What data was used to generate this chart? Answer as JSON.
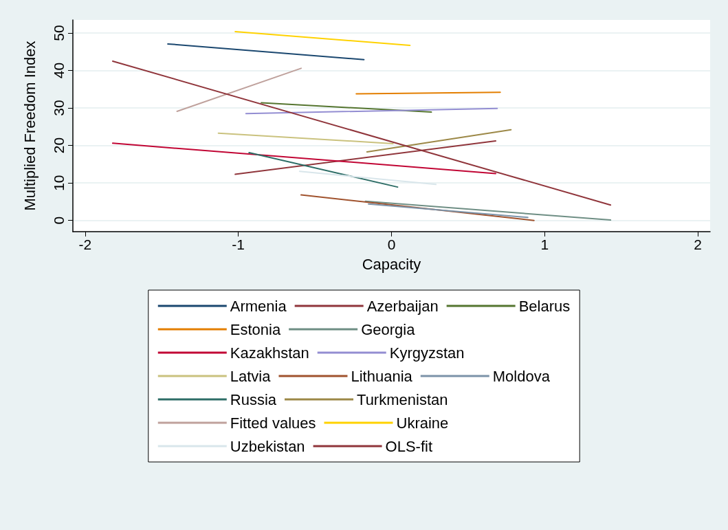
{
  "chart_data": {
    "type": "line",
    "xlabel": "Capacity",
    "ylabel": "Multiplied Freedom Index",
    "xlim": [
      -2.08,
      2.08
    ],
    "xticks": [
      -2,
      -1,
      0,
      1,
      2
    ],
    "ylim": [
      -3,
      53.5
    ],
    "yticks": [
      0,
      10,
      20,
      30,
      40,
      50
    ],
    "grid": "y",
    "legend": "bottom",
    "marker": "none",
    "line_style": "solid",
    "series": [
      {
        "name": "Armenia",
        "color": "#1a476f",
        "x": [
          -1.46,
          -0.18
        ],
        "values": [
          47.1,
          42.9
        ]
      },
      {
        "name": "Azerbaijan",
        "color": "#90353b",
        "x": [
          -1.02,
          0.68
        ],
        "values": [
          12.3,
          21.2
        ]
      },
      {
        "name": "Belarus",
        "color": "#55752f",
        "x": [
          -0.85,
          0.26
        ],
        "values": [
          31.4,
          28.9
        ]
      },
      {
        "name": "Estonia",
        "color": "#e37e00",
        "x": [
          -0.23,
          0.71
        ],
        "values": [
          33.8,
          34.2
        ]
      },
      {
        "name": "Georgia",
        "color": "#6e8e84",
        "x": [
          -0.17,
          1.43
        ],
        "values": [
          5.1,
          0.1
        ]
      },
      {
        "name": "Kazakhstan",
        "color": "#c10534",
        "x": [
          -1.82,
          0.68
        ],
        "values": [
          20.6,
          12.5
        ]
      },
      {
        "name": "Kyrgyzstan",
        "color": "#938dd2",
        "x": [
          -0.95,
          0.69
        ],
        "values": [
          28.5,
          29.9
        ]
      },
      {
        "name": "Latvia",
        "color": "#cac27e",
        "x": [
          -1.13,
          0.01
        ],
        "values": [
          23.3,
          20.5
        ]
      },
      {
        "name": "Lithuania",
        "color": "#a0522d",
        "x": [
          -0.59,
          0.93
        ],
        "values": [
          6.8,
          0.0
        ]
      },
      {
        "name": "Moldova",
        "color": "#7b92a8",
        "x": [
          -0.15,
          0.89
        ],
        "values": [
          4.4,
          0.8
        ]
      },
      {
        "name": "Russia",
        "color": "#2d6d66",
        "x": [
          -0.93,
          0.04
        ],
        "values": [
          18.1,
          8.9
        ]
      },
      {
        "name": "Turkmenistan",
        "color": "#9c8847",
        "x": [
          -0.16,
          0.78
        ],
        "values": [
          18.3,
          24.2
        ]
      },
      {
        "name": "Fitted values",
        "color": "#bfa19c",
        "x": [
          -1.4,
          -0.59
        ],
        "values": [
          29.1,
          40.6
        ]
      },
      {
        "name": "Ukraine",
        "color": "#ffd200",
        "x": [
          -1.02,
          0.12
        ],
        "values": [
          50.4,
          46.7
        ]
      },
      {
        "name": "Uzbekistan",
        "color": "#d9e6eb",
        "x": [
          -0.6,
          0.29
        ],
        "values": [
          13.1,
          9.6
        ]
      },
      {
        "name": "OLS-fit",
        "color": "#90353b",
        "x": [
          -1.82,
          1.43
        ],
        "values": [
          42.5,
          4.1
        ]
      }
    ]
  }
}
